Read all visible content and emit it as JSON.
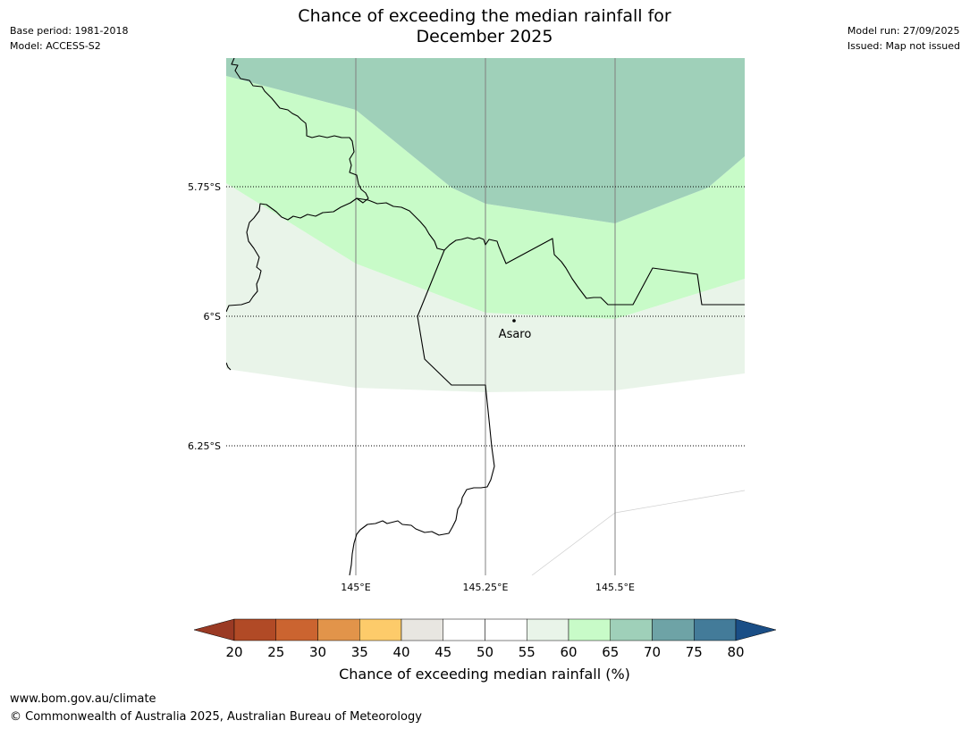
{
  "header": {
    "title_line1": "Chance of exceeding the median rainfall for",
    "title_line2": "December 2025",
    "base_period": "Base period: 1981-2018",
    "model": "Model: ACCESS-S2",
    "model_run": "Model run: 27/09/2025",
    "issued": "Issued: Map not issued"
  },
  "map": {
    "lat_labels": [
      "5.75°S",
      "6°S",
      "6.25°S"
    ],
    "lon_labels": [
      "145°E",
      "145.25°E",
      "145.5°E"
    ],
    "place_label": "Asaro",
    "background_color": "#ffffff"
  },
  "colorbar": {
    "title": "Chance of exceeding median rainfall (%)",
    "tick_labels": [
      "20",
      "25",
      "30",
      "35",
      "40",
      "45",
      "50",
      "55",
      "60",
      "65",
      "70",
      "75",
      "80"
    ],
    "under_color": "#9a3a24",
    "over_color": "#1a4e86",
    "bin_colors": [
      "#b14a26",
      "#cb6430",
      "#e2944a",
      "#fdcb6a",
      "#e8e6e1",
      "#ffffff",
      "#ffffff",
      "#e9f4e9",
      "#c8fbc8",
      "#9fd0b9",
      "#6ea3a6",
      "#437b99"
    ]
  },
  "footer": {
    "url": "www.bom.gov.au/climate",
    "copyright": "© Commonwealth of Australia 2025, Australian Bureau of Meteorology"
  }
}
